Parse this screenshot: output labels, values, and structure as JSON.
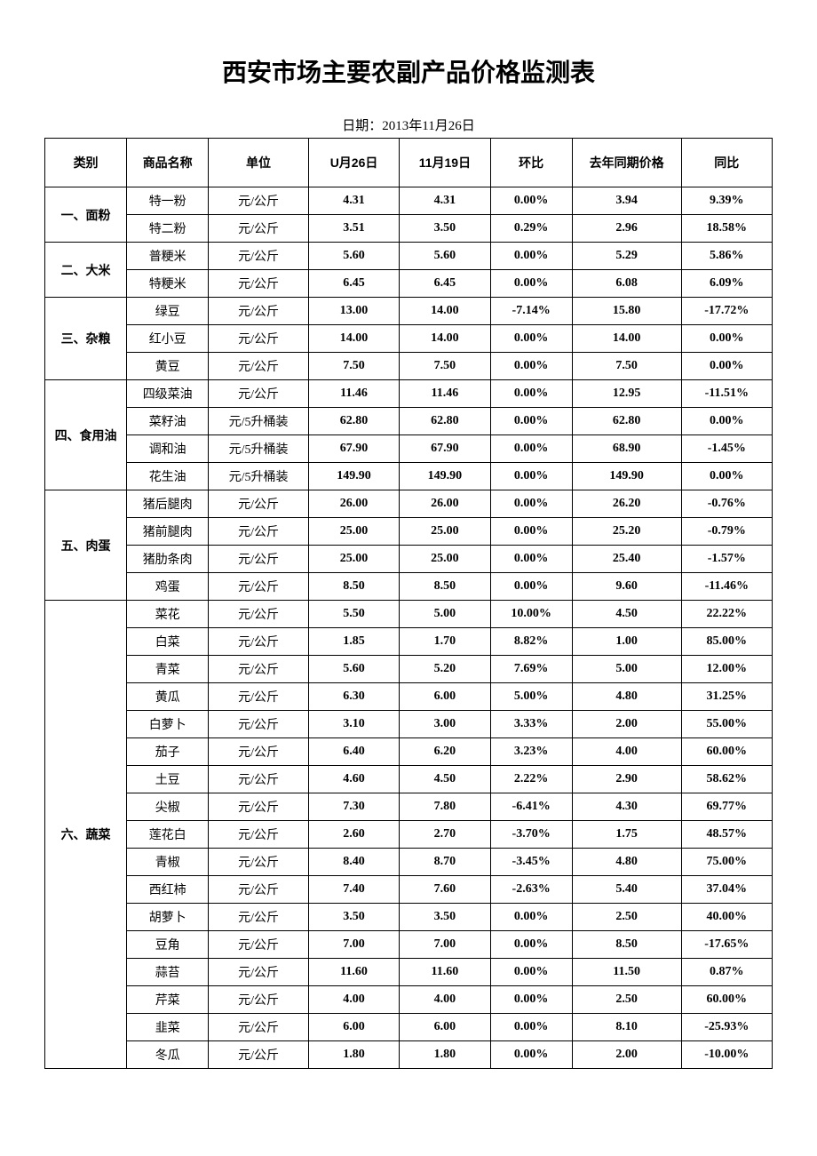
{
  "title": "西安市场主要农副产品价格监测表",
  "date_label": "日期：2013年11月26日",
  "headers": {
    "category": "类别",
    "name": "商品名称",
    "unit": "单位",
    "v1": "U月26日",
    "v2": "11月19日",
    "mom": "环比",
    "last_year": "去年同期价格",
    "yoy": "同比"
  },
  "groups": [
    {
      "category": "一、面粉",
      "rows": [
        {
          "name": "特一粉",
          "unit": "元/公斤",
          "v1": "4.31",
          "v2": "4.31",
          "mom": "0.00%",
          "ly": "3.94",
          "yoy": "9.39%"
        },
        {
          "name": "特二粉",
          "unit": "元/公斤",
          "v1": "3.51",
          "v2": "3.50",
          "mom": "0.29%",
          "ly": "2.96",
          "yoy": "18.58%"
        }
      ]
    },
    {
      "category": "二、大米",
      "rows": [
        {
          "name": "普粳米",
          "unit": "元/公斤",
          "v1": "5.60",
          "v2": "5.60",
          "mom": "0.00%",
          "ly": "5.29",
          "yoy": "5.86%"
        },
        {
          "name": "特粳米",
          "unit": "元/公斤",
          "v1": "6.45",
          "v2": "6.45",
          "mom": "0.00%",
          "ly": "6.08",
          "yoy": "6.09%"
        }
      ]
    },
    {
      "category": "三、杂粮",
      "rows": [
        {
          "name": "绿豆",
          "unit": "元/公斤",
          "v1": "13.00",
          "v2": "14.00",
          "mom": "-7.14%",
          "ly": "15.80",
          "yoy": "-17.72%"
        },
        {
          "name": "红小豆",
          "unit": "元/公斤",
          "v1": "14.00",
          "v2": "14.00",
          "mom": "0.00%",
          "ly": "14.00",
          "yoy": "0.00%"
        },
        {
          "name": "黄豆",
          "unit": "元/公斤",
          "v1": "7.50",
          "v2": "7.50",
          "mom": "0.00%",
          "ly": "7.50",
          "yoy": "0.00%"
        }
      ]
    },
    {
      "category": "四、食用油",
      "rows": [
        {
          "name": "四级菜油",
          "unit": "元/公斤",
          "v1": "11.46",
          "v2": "11.46",
          "mom": "0.00%",
          "ly": "12.95",
          "yoy": "-11.51%"
        },
        {
          "name": "菜籽油",
          "unit": "元/5升桶装",
          "v1": "62.80",
          "v2": "62.80",
          "mom": "0.00%",
          "ly": "62.80",
          "yoy": "0.00%"
        },
        {
          "name": "调和油",
          "unit": "元/5升桶装",
          "v1": "67.90",
          "v2": "67.90",
          "mom": "0.00%",
          "ly": "68.90",
          "yoy": "-1.45%"
        },
        {
          "name": "花生油",
          "unit": "元/5升桶装",
          "v1": "149.90",
          "v2": "149.90",
          "mom": "0.00%",
          "ly": "149.90",
          "yoy": "0.00%"
        }
      ]
    },
    {
      "category": "五、肉蛋",
      "rows": [
        {
          "name": "猪后腿肉",
          "unit": "元/公斤",
          "v1": "26.00",
          "v2": "26.00",
          "mom": "0.00%",
          "ly": "26.20",
          "yoy": "-0.76%"
        },
        {
          "name": "猪前腿肉",
          "unit": "元/公斤",
          "v1": "25.00",
          "v2": "25.00",
          "mom": "0.00%",
          "ly": "25.20",
          "yoy": "-0.79%"
        },
        {
          "name": "猪肋条肉",
          "unit": "元/公斤",
          "v1": "25.00",
          "v2": "25.00",
          "mom": "0.00%",
          "ly": "25.40",
          "yoy": "-1.57%"
        },
        {
          "name": "鸡蛋",
          "unit": "元/公斤",
          "v1": "8.50",
          "v2": "8.50",
          "mom": "0.00%",
          "ly": "9.60",
          "yoy": "-11.46%"
        }
      ]
    },
    {
      "category": "六、蔬菜",
      "rows": [
        {
          "name": "菜花",
          "unit": "元/公斤",
          "v1": "5.50",
          "v2": "5.00",
          "mom": "10.00%",
          "ly": "4.50",
          "yoy": "22.22%"
        },
        {
          "name": "白菜",
          "unit": "元/公斤",
          "v1": "1.85",
          "v2": "1.70",
          "mom": "8.82%",
          "ly": "1.00",
          "yoy": "85.00%"
        },
        {
          "name": "青菜",
          "unit": "元/公斤",
          "v1": "5.60",
          "v2": "5.20",
          "mom": "7.69%",
          "ly": "5.00",
          "yoy": "12.00%"
        },
        {
          "name": "黄瓜",
          "unit": "元/公斤",
          "v1": "6.30",
          "v2": "6.00",
          "mom": "5.00%",
          "ly": "4.80",
          "yoy": "31.25%"
        },
        {
          "name": "白萝卜",
          "unit": "元/公斤",
          "v1": "3.10",
          "v2": "3.00",
          "mom": "3.33%",
          "ly": "2.00",
          "yoy": "55.00%"
        },
        {
          "name": "茄子",
          "unit": "元/公斤",
          "v1": "6.40",
          "v2": "6.20",
          "mom": "3.23%",
          "ly": "4.00",
          "yoy": "60.00%"
        },
        {
          "name": "土豆",
          "unit": "元/公斤",
          "v1": "4.60",
          "v2": "4.50",
          "mom": "2.22%",
          "ly": "2.90",
          "yoy": "58.62%"
        },
        {
          "name": "尖椒",
          "unit": "元/公斤",
          "v1": "7.30",
          "v2": "7.80",
          "mom": "-6.41%",
          "ly": "4.30",
          "yoy": "69.77%"
        },
        {
          "name": "莲花白",
          "unit": "元/公斤",
          "v1": "2.60",
          "v2": "2.70",
          "mom": "-3.70%",
          "ly": "1.75",
          "yoy": "48.57%"
        },
        {
          "name": "青椒",
          "unit": "元/公斤",
          "v1": "8.40",
          "v2": "8.70",
          "mom": "-3.45%",
          "ly": "4.80",
          "yoy": "75.00%"
        },
        {
          "name": "西红柿",
          "unit": "元/公斤",
          "v1": "7.40",
          "v2": "7.60",
          "mom": "-2.63%",
          "ly": "5.40",
          "yoy": "37.04%"
        },
        {
          "name": "胡萝卜",
          "unit": "元/公斤",
          "v1": "3.50",
          "v2": "3.50",
          "mom": "0.00%",
          "ly": "2.50",
          "yoy": "40.00%"
        },
        {
          "name": "豆角",
          "unit": "元/公斤",
          "v1": "7.00",
          "v2": "7.00",
          "mom": "0.00%",
          "ly": "8.50",
          "yoy": "-17.65%"
        },
        {
          "name": "蒜苔",
          "unit": "元/公斤",
          "v1": "11.60",
          "v2": "11.60",
          "mom": "0.00%",
          "ly": "11.50",
          "yoy": "0.87%"
        },
        {
          "name": "芹菜",
          "unit": "元/公斤",
          "v1": "4.00",
          "v2": "4.00",
          "mom": "0.00%",
          "ly": "2.50",
          "yoy": "60.00%"
        },
        {
          "name": "韭菜",
          "unit": "元/公斤",
          "v1": "6.00",
          "v2": "6.00",
          "mom": "0.00%",
          "ly": "8.10",
          "yoy": "-25.93%"
        },
        {
          "name": "冬瓜",
          "unit": "元/公斤",
          "v1": "1.80",
          "v2": "1.80",
          "mom": "0.00%",
          "ly": "2.00",
          "yoy": "-10.00%"
        }
      ]
    }
  ]
}
